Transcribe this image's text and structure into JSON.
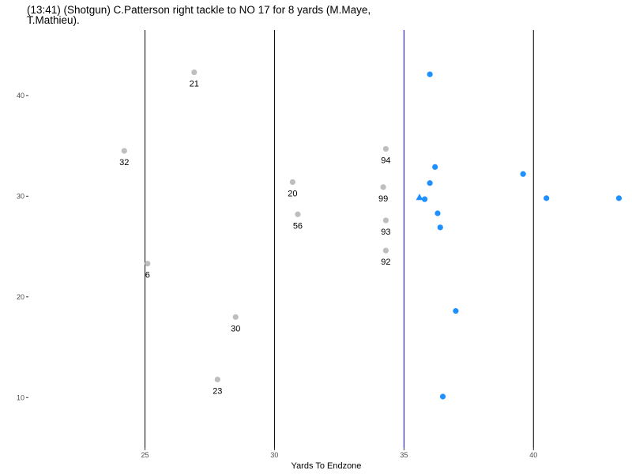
{
  "chart_data": {
    "type": "scatter",
    "title": "(13:41) (Shotgun) C.Patterson right tackle to NO 17 for 8 yards (M.Maye, T.Mathieu).",
    "xlabel": "Yards To Endzone",
    "ylabel": "",
    "xlim": [
      20.5,
      43.5
    ],
    "ylim": [
      5,
      46.5
    ],
    "x_ticks": [
      25,
      30,
      35,
      40
    ],
    "y_ticks": [
      10,
      20,
      30,
      40
    ],
    "grid": false,
    "yard_lines": [
      25,
      30,
      40
    ],
    "line_of_scrimmage": 35,
    "colors": {
      "defense": "#bebebe",
      "offense": "#1e90ff",
      "yard_line": "#000000",
      "line_of_scrimmage": "#0000cd"
    },
    "series": [
      {
        "role": "defense",
        "marker": "circle",
        "points": [
          {
            "x": 26.9,
            "y": 42.3,
            "label": "21"
          },
          {
            "x": 24.2,
            "y": 34.5,
            "label": "32"
          },
          {
            "x": 30.7,
            "y": 31.4,
            "label": "20"
          },
          {
            "x": 30.9,
            "y": 28.2,
            "label": "56"
          },
          {
            "x": 25.1,
            "y": 23.3,
            "label": "6"
          },
          {
            "x": 28.5,
            "y": 18.0,
            "label": "30"
          },
          {
            "x": 27.8,
            "y": 11.8,
            "label": "23"
          },
          {
            "x": 34.3,
            "y": 34.7,
            "label": "94"
          },
          {
            "x": 34.2,
            "y": 30.9,
            "label": "99"
          },
          {
            "x": 34.3,
            "y": 27.6,
            "label": "93"
          },
          {
            "x": 34.3,
            "y": 24.6,
            "label": "92"
          }
        ]
      },
      {
        "role": "offense",
        "marker": "circle",
        "points": [
          {
            "x": 36.0,
            "y": 42.1
          },
          {
            "x": 36.2,
            "y": 32.9
          },
          {
            "x": 36.0,
            "y": 31.3
          },
          {
            "x": 39.6,
            "y": 32.2
          },
          {
            "x": 35.8,
            "y": 29.7
          },
          {
            "x": 36.3,
            "y": 28.3
          },
          {
            "x": 36.4,
            "y": 26.9
          },
          {
            "x": 40.5,
            "y": 29.8
          },
          {
            "x": 43.3,
            "y": 29.8
          },
          {
            "x": 37.0,
            "y": 18.6
          },
          {
            "x": 36.5,
            "y": 10.1
          }
        ]
      },
      {
        "role": "football",
        "marker": "triangle",
        "points": [
          {
            "x": 35.6,
            "y": 29.9
          }
        ]
      }
    ]
  }
}
